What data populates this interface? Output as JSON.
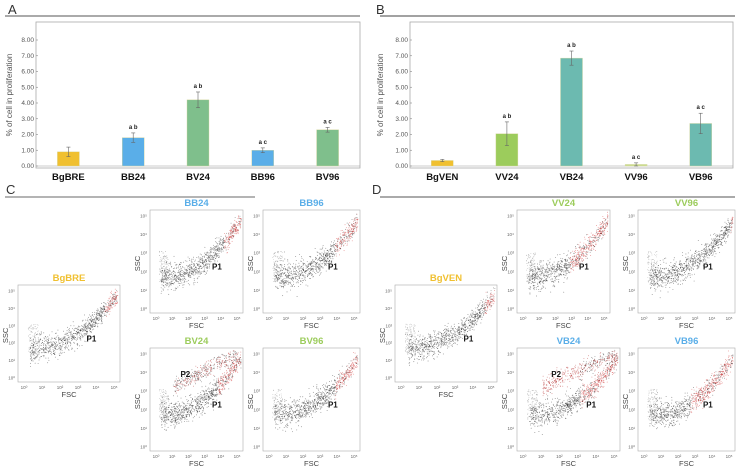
{
  "panels": {
    "A": "A",
    "B": "B",
    "C": "C",
    "D": "D"
  },
  "chart_data": [
    {
      "panel": "A",
      "type": "bar",
      "title": "",
      "xlabel": "",
      "ylabel": "% of cell in proliferation",
      "ylim": [
        0,
        8
      ],
      "yticks": [
        "0.00",
        "1.00",
        "2.00",
        "3.00",
        "4.00",
        "5.00",
        "6.00",
        "7.00",
        "8.00"
      ],
      "grid": false,
      "categories": [
        "BgBRE",
        "BB24",
        "BV24",
        "BB96",
        "BV96"
      ],
      "values": [
        0.9,
        1.8,
        4.2,
        1.0,
        2.3
      ],
      "errors": [
        0.3,
        0.3,
        0.5,
        0.15,
        0.15
      ],
      "significance": [
        "",
        "a b",
        "a b",
        "a c",
        "a c"
      ],
      "colors": [
        "#f0c030",
        "#5aaee8",
        "#7fbf8c",
        "#5aaee8",
        "#7fbf8c"
      ]
    },
    {
      "panel": "B",
      "type": "bar",
      "title": "",
      "xlabel": "",
      "ylabel": "% of cell in proliferation",
      "ylim": [
        0,
        8
      ],
      "yticks": [
        "0.00",
        "1.00",
        "2.00",
        "3.00",
        "4.00",
        "5.00",
        "6.00",
        "7.00",
        "8.00"
      ],
      "grid": false,
      "categories": [
        "BgVEN",
        "VV24",
        "VB24",
        "VV96",
        "VB96"
      ],
      "values": [
        0.35,
        2.05,
        6.85,
        0.1,
        2.7
      ],
      "errors": [
        0.07,
        0.75,
        0.45,
        0.1,
        0.65
      ],
      "significance": [
        "",
        "a b",
        "a b",
        "a c",
        "a c"
      ],
      "colors": [
        "#f0c030",
        "#9ccc5c",
        "#6cbab0",
        "#c8dc8c",
        "#6cbab0"
      ]
    },
    {
      "panel": "C",
      "type": "scatter",
      "xlabel": "FSC",
      "ylabel": "SSC",
      "scale": "log",
      "ticks": [
        "10⁰",
        "10¹",
        "10²",
        "10³",
        "10⁴",
        "10⁵"
      ],
      "plots": [
        {
          "title": "BgBRE",
          "title_color": "#f0c030",
          "gates": [
            "P1"
          ],
          "second_population": false,
          "red_level": 0.25
        },
        {
          "title": "BB24",
          "title_color": "#5aaee8",
          "gates": [
            "P1"
          ],
          "second_population": false,
          "red_level": 0.35
        },
        {
          "title": "BB96",
          "title_color": "#5aaee8",
          "gates": [
            "P1"
          ],
          "second_population": false,
          "red_level": 0.45
        },
        {
          "title": "BV24",
          "title_color": "#9ccc5c",
          "gates": [
            "P1",
            "P2"
          ],
          "second_population": true,
          "red_level": 0.5
        },
        {
          "title": "BV96",
          "title_color": "#9ccc5c",
          "gates": [
            "P1"
          ],
          "second_population": false,
          "red_level": 0.45
        }
      ]
    },
    {
      "panel": "D",
      "type": "scatter",
      "xlabel": "FSC",
      "ylabel": "SSC",
      "scale": "log",
      "ticks": [
        "10⁰",
        "10¹",
        "10²",
        "10³",
        "10⁴",
        "10⁵"
      ],
      "plots": [
        {
          "title": "BgVEN",
          "title_color": "#f0c030",
          "gates": [
            "P1"
          ],
          "second_population": false,
          "red_level": 0.2
        },
        {
          "title": "VV24",
          "title_color": "#9ccc5c",
          "gates": [
            "P1"
          ],
          "second_population": false,
          "red_level": 0.8
        },
        {
          "title": "VV96",
          "title_color": "#9ccc5c",
          "gates": [
            "P1"
          ],
          "second_population": false,
          "red_level": 0.05
        },
        {
          "title": "VB24",
          "title_color": "#5aaee8",
          "gates": [
            "P1",
            "P2"
          ],
          "second_population": true,
          "red_level": 0.7
        },
        {
          "title": "VB96",
          "title_color": "#5aaee8",
          "gates": [
            "P1"
          ],
          "second_population": false,
          "red_level": 0.85
        }
      ]
    }
  ]
}
